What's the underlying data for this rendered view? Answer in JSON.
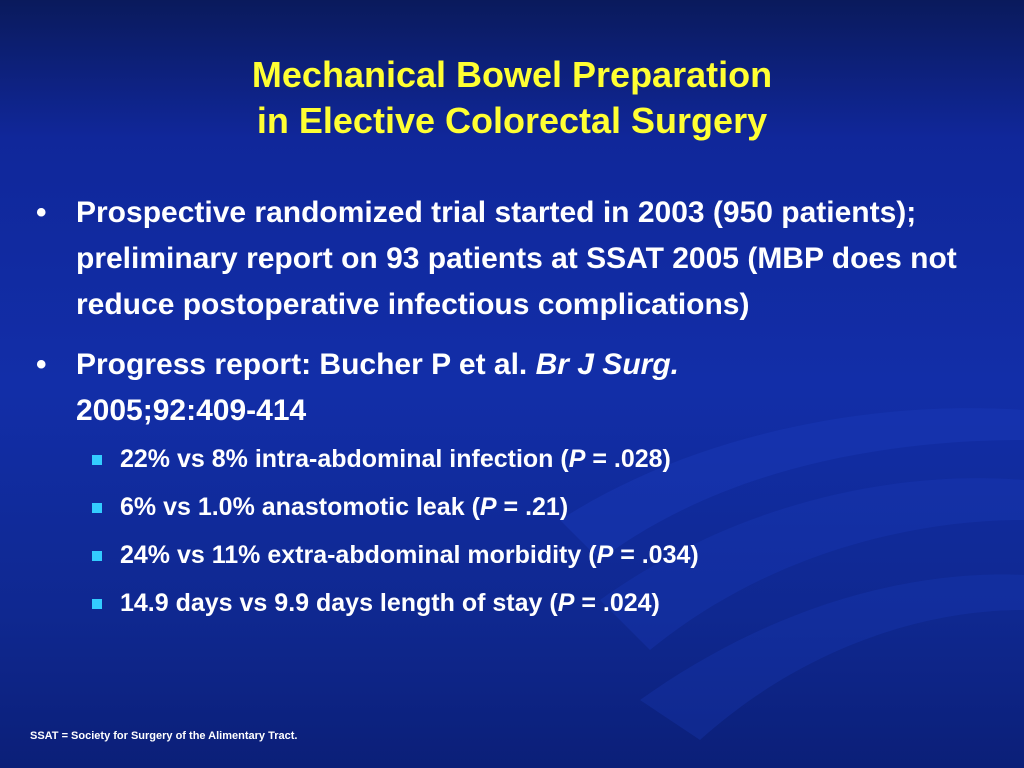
{
  "title": {
    "line1": "Mechanical Bowel Preparation",
    "line2": "in Elective Colorectal Surgery"
  },
  "bullets": [
    {
      "text": "Prospective randomized trial started in 2003 (950 patients); preliminary report on 93 patients at SSAT 2005 (MBP does not reduce postoperative infectious complications)"
    },
    {
      "text_before": "Progress report: Bucher P et al. ",
      "journal": "Br J Surg.",
      "text_after": "2005;92:409-414",
      "subbullets": [
        {
          "pre": "22% vs 8% intra-abdominal infection (",
          "p": "P",
          "post": " = .028)"
        },
        {
          "pre": "6% vs 1.0% anastomotic leak (",
          "p": "P",
          "post": " = .21)"
        },
        {
          "pre": "24% vs 11% extra-abdominal morbidity (",
          "p": "P",
          "post": " = .034)"
        },
        {
          "pre": "14.9 days vs 9.9 days length of stay (",
          "p": "P",
          "post": " = .024)"
        }
      ]
    }
  ],
  "bullet_glyph": "•",
  "footnote": "SSAT = Society for Surgery of the Alimentary Tract.",
  "colors": {
    "title": "#ffff33",
    "text": "#ffffff",
    "subbullet_marker": "#33ccff",
    "background": "#122ea8"
  }
}
